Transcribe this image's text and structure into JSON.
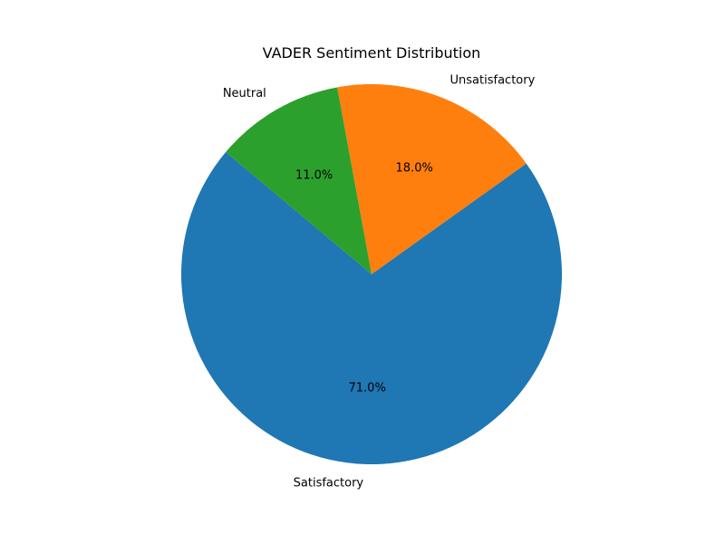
{
  "chart_data": {
    "type": "pie",
    "title": "VADER Sentiment Distribution",
    "categories": [
      "Satisfactory",
      "Unsatisfactory",
      "Neutral"
    ],
    "values": [
      71.0,
      18.0,
      11.0
    ],
    "percent_labels": [
      "71.0%",
      "18.0%",
      "11.0%"
    ],
    "colors": [
      "#1f77b4",
      "#ff7f0e",
      "#2ca02c"
    ],
    "legend": "none"
  }
}
